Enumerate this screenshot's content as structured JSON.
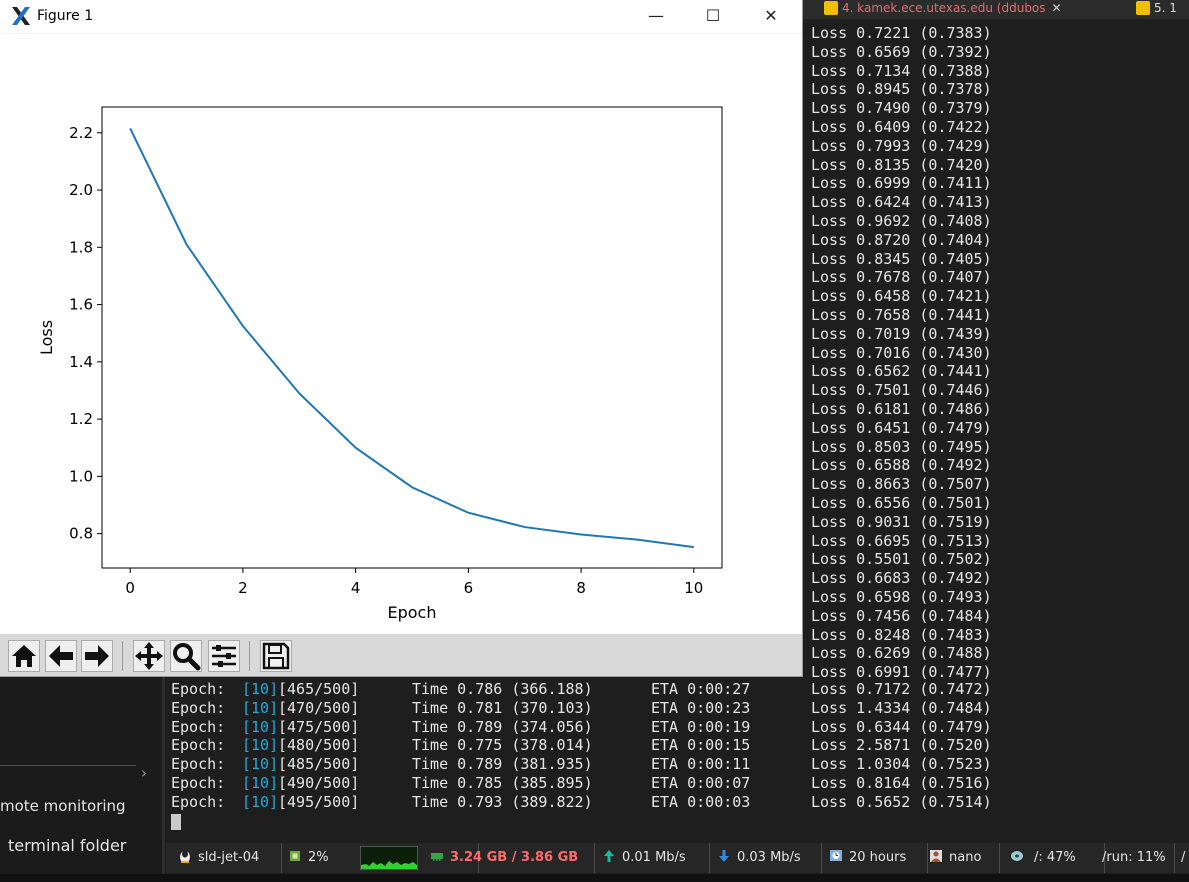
{
  "window": {
    "title": "Figure 1",
    "controls": [
      "—",
      "☐",
      "✕"
    ]
  },
  "chart_data": {
    "type": "line",
    "xlabel": "Epoch",
    "ylabel": "Loss",
    "x": [
      0,
      1,
      2,
      3,
      4,
      5,
      6,
      7,
      8,
      9,
      10
    ],
    "values": [
      2.215,
      1.81,
      1.525,
      1.29,
      1.1,
      0.962,
      0.873,
      0.823,
      0.797,
      0.779,
      0.753
    ],
    "xlim": [
      -0.5,
      10.5
    ],
    "ylim": [
      0.68,
      2.29
    ],
    "xticks": [
      "0",
      "2",
      "4",
      "6",
      "8",
      "10"
    ],
    "yticks": [
      "0.8",
      "1.0",
      "1.2",
      "1.4",
      "1.6",
      "1.8",
      "2.0",
      "2.2"
    ],
    "color": "#1f77b4",
    "grid": false
  },
  "toolbar": {
    "buttons": [
      "home-icon",
      "back-arrow-icon",
      "forward-arrow-icon",
      "pan-icon",
      "zoom-icon",
      "subplots-icon",
      "save-icon"
    ]
  },
  "terminal": {
    "tabs": [
      {
        "label": "4. kamek.ece.utexas.edu (ddubos",
        "close": "✕"
      },
      {
        "label": "5. 1",
        "close": ""
      }
    ],
    "loss_lines": [
      "Loss 0.7221 (0.7383)",
      "Loss 0.6569 (0.7392)",
      "Loss 0.7134 (0.7388)",
      "Loss 0.8945 (0.7378)",
      "Loss 0.7490 (0.7379)",
      "Loss 0.6409 (0.7422)",
      "Loss 0.7993 (0.7429)",
      "Loss 0.8135 (0.7420)",
      "Loss 0.6999 (0.7411)",
      "Loss 0.6424 (0.7413)",
      "Loss 0.9692 (0.7408)",
      "Loss 0.8720 (0.7404)",
      "Loss 0.8345 (0.7405)",
      "Loss 0.7678 (0.7407)",
      "Loss 0.6458 (0.7421)",
      "Loss 0.7658 (0.7441)",
      "Loss 0.7019 (0.7439)",
      "Loss 0.7016 (0.7430)",
      "Loss 0.6562 (0.7441)",
      "Loss 0.7501 (0.7446)",
      "Loss 0.6181 (0.7486)",
      "Loss 0.6451 (0.7479)",
      "Loss 0.8503 (0.7495)",
      "Loss 0.6588 (0.7492)",
      "Loss 0.8663 (0.7507)",
      "Loss 0.6556 (0.7501)",
      "Loss 0.9031 (0.7519)",
      "Loss 0.6695 (0.7513)",
      "Loss 0.5501 (0.7502)",
      "Loss 0.6683 (0.7492)",
      "Loss 0.6598 (0.7493)",
      "Loss 0.7456 (0.7484)",
      "Loss 0.8248 (0.7483)",
      "Loss 0.6269 (0.7488)",
      "Loss 0.6991 (0.7477)"
    ],
    "epoch_lines": [
      {
        "prefix": "Epoch: ",
        "epoch": "[10]",
        "step": "[465/500]",
        "time": "Time 0.786 (366.188)",
        "eta": "ETA 0:00:27",
        "loss": "Loss 0.7172 (0.7472)"
      },
      {
        "prefix": "Epoch: ",
        "epoch": "[10]",
        "step": "[470/500]",
        "time": "Time 0.781 (370.103)",
        "eta": "ETA 0:00:23",
        "loss": "Loss 1.4334 (0.7484)"
      },
      {
        "prefix": "Epoch: ",
        "epoch": "[10]",
        "step": "[475/500]",
        "time": "Time 0.789 (374.056)",
        "eta": "ETA 0:00:19",
        "loss": "Loss 0.6344 (0.7479)"
      },
      {
        "prefix": "Epoch: ",
        "epoch": "[10]",
        "step": "[480/500]",
        "time": "Time 0.775 (378.014)",
        "eta": "ETA 0:00:15",
        "loss": "Loss 2.5871 (0.7520)"
      },
      {
        "prefix": "Epoch: ",
        "epoch": "[10]",
        "step": "[485/500]",
        "time": "Time 0.789 (381.935)",
        "eta": "ETA 0:00:11",
        "loss": "Loss 1.0304 (0.7523)"
      },
      {
        "prefix": "Epoch: ",
        "epoch": "[10]",
        "step": "[490/500]",
        "time": "Time 0.785 (385.895)",
        "eta": "ETA 0:00:07",
        "loss": "Loss 0.8164 (0.7516)"
      },
      {
        "prefix": "Epoch: ",
        "epoch": "[10]",
        "step": "[495/500]",
        "time": "Time 0.793 (389.822)",
        "eta": "ETA 0:00:03",
        "loss": "Loss 0.5652 (0.7514)"
      }
    ]
  },
  "sidebar": {
    "chevron": "›",
    "items": [
      "mote monitoring",
      "terminal folder"
    ]
  },
  "statusbar": {
    "host": "sld-jet-04",
    "cpu": "2%",
    "memory": "3.24 GB / 3.86 GB",
    "upload": "0.01 Mb/s",
    "download": "0.03 Mb/s",
    "uptime": "20 hours",
    "user": "nano",
    "disk_root": "/: 47%",
    "disk_run": "/run: 11%",
    "extra": "/",
    "memory_color": "#ff6b6b"
  }
}
